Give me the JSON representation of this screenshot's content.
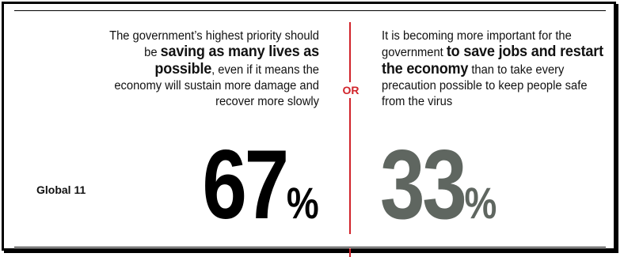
{
  "chart_data": {
    "type": "table",
    "row_label": "Global 11",
    "separator": "OR",
    "options": [
      {
        "text_before": "The government’s highest priority should be ",
        "text_bold": "saving as many lives as possible",
        "text_after": ", even if it means the economy will sustain more damage and recover more slowly",
        "value": 67,
        "value_label": "67",
        "unit": "%",
        "color": "#000000"
      },
      {
        "text_before": "It is becoming more important for the government ",
        "text_bold": "to save jobs and restart the economy",
        "text_after": " than to take every precaution possible to keep people safe from the virus",
        "value": 33,
        "value_label": "33",
        "unit": "%",
        "color": "#5f6660"
      }
    ],
    "accent_color": "#d1232a"
  }
}
